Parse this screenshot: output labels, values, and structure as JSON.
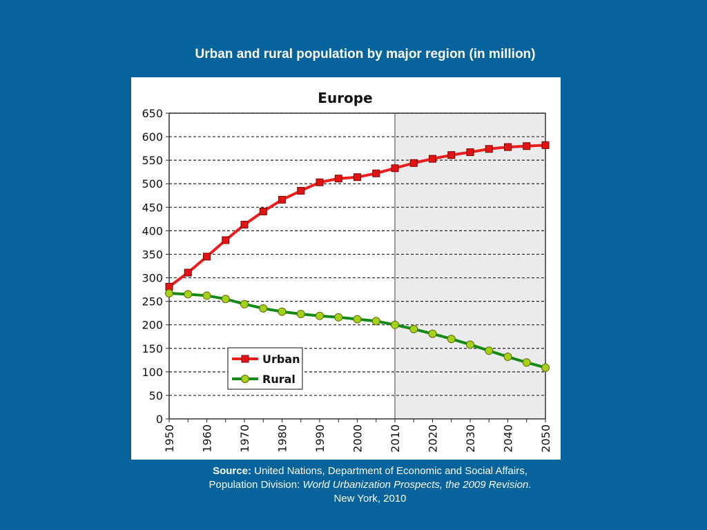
{
  "slide": {
    "title": "Urban and rural population by major region (in million)"
  },
  "source": {
    "label": "Source:",
    "text_a": " United Nations, Department of Economic and Social Affairs, Population Division: ",
    "publication": "World Urbanization Prospects, the 2009 Revision",
    "text_b": ". New York, 2010"
  },
  "colors": {
    "background": "#06639b",
    "urban_line": "#ee1c1c",
    "urban_marker": "#e01414",
    "rural_line": "#138a13",
    "rural_marker": "#a6d11a",
    "projection_shade": "#ebebeb"
  },
  "chart_data": {
    "type": "line",
    "title": "Europe",
    "xlabel": "",
    "ylabel": "",
    "ylim": [
      0,
      650
    ],
    "yticks": [
      0,
      50,
      100,
      150,
      200,
      250,
      300,
      350,
      400,
      450,
      500,
      550,
      600,
      650
    ],
    "xlim": [
      1950,
      2050
    ],
    "xticks": [
      1950,
      1960,
      1970,
      1980,
      1990,
      2000,
      2010,
      2020,
      2030,
      2040,
      2050
    ],
    "grid": "horizontal dashed",
    "projection_start": 2010,
    "legend_position": "bottom-left",
    "x": [
      1950,
      1955,
      1960,
      1965,
      1970,
      1975,
      1980,
      1985,
      1990,
      1995,
      2000,
      2005,
      2010,
      2015,
      2020,
      2025,
      2030,
      2035,
      2040,
      2045,
      2050
    ],
    "series": [
      {
        "name": "Urban",
        "values": [
          281,
          311,
          345,
          380,
          413,
          441,
          466,
          485,
          503,
          511,
          514,
          522,
          533,
          544,
          553,
          561,
          567,
          574,
          578,
          580,
          582
        ]
      },
      {
        "name": "Rural",
        "values": [
          267,
          265,
          262,
          255,
          244,
          235,
          228,
          223,
          219,
          216,
          212,
          208,
          200,
          191,
          181,
          170,
          158,
          145,
          132,
          120,
          109
        ]
      }
    ]
  }
}
